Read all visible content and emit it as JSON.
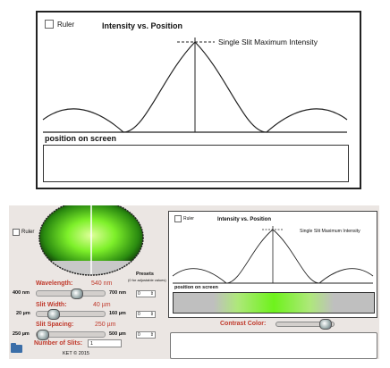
{
  "top_panel": {
    "ruler_label": "Ruler",
    "title": "Intensity vs. Position",
    "annotation": "Single Slit Maximum Intensity",
    "position_label": "position on screen"
  },
  "sim": {
    "ruler_label": "Ruler",
    "controls": {
      "wavelength": {
        "label": "Wavelength:",
        "value": "540",
        "unit": "nm",
        "min": "400 nm",
        "max": "700 nm"
      },
      "slit_width": {
        "label": "Slit Width:",
        "value": "40",
        "unit": "µm",
        "min": "20 µm",
        "max": "160 µm"
      },
      "slit_spacing": {
        "label": "Slit Spacing:",
        "value": "250",
        "unit": "µm",
        "min": "250 µm",
        "max": "500 µm"
      },
      "num_slits": {
        "label": "Number of Slits:",
        "value": "1"
      }
    },
    "presets": {
      "title": "Presets",
      "subtitle": "(0 for adjustable values)",
      "stepper_value": "0"
    },
    "copyright": "KET © 2015",
    "graph": {
      "ruler_label": "Ruler",
      "title": "Intensity vs. Position",
      "annotation": "Single Slit Maximum Intensity",
      "position_label": "position on screen"
    },
    "contrast_label": "Contrast Color:"
  },
  "colors": {
    "accent_label": "#c0392b",
    "pattern_green": "#6ef21c",
    "panel_bg": "#ebe6e3"
  }
}
